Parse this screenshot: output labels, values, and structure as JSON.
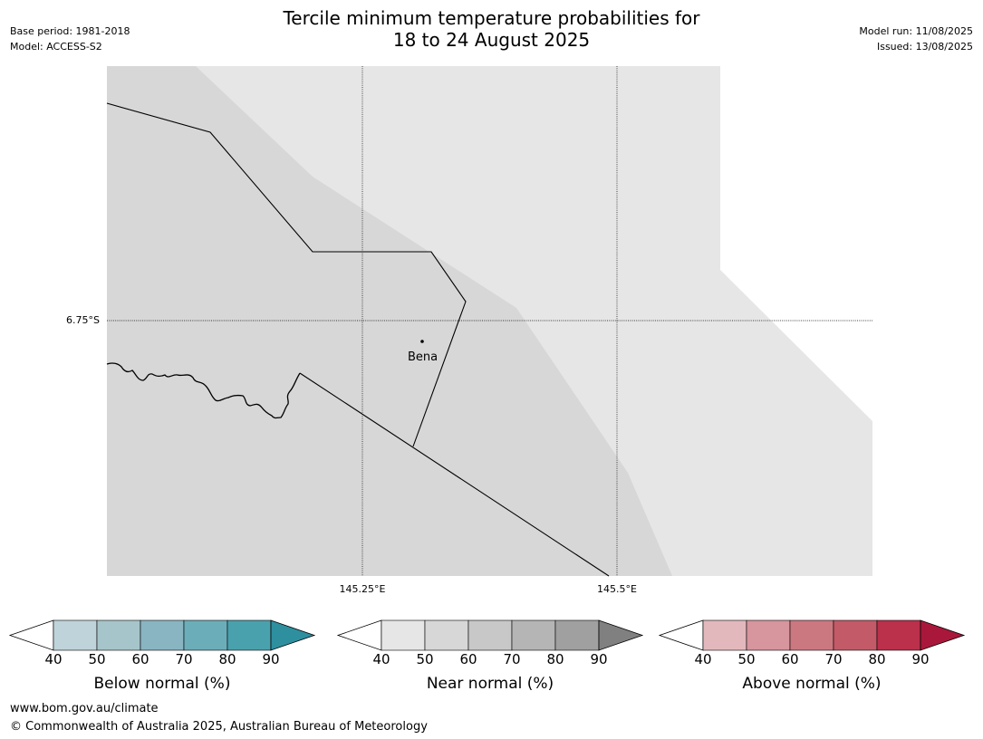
{
  "title": {
    "line1": "Tercile minimum temperature probabilities for",
    "line2": "18 to 24 August 2025"
  },
  "meta": {
    "base_period": "Base period: 1981-2018",
    "model": "Model: ACCESS-S2",
    "model_run": "Model run: 11/08/2025",
    "issued": "Issued: 13/08/2025"
  },
  "map": {
    "longitude_ticks": [
      "145.25°E",
      "145.5°E"
    ],
    "latitude_ticks": [
      "6.75°S"
    ],
    "places": [
      {
        "name": "Bena"
      }
    ],
    "colors": {
      "near_normal_50_60": "#d7d7d7",
      "near_normal_40_50": "#e6e6e6",
      "border": "#000000"
    }
  },
  "legends": [
    {
      "label": "Below normal (%)",
      "ticks": [
        "40",
        "50",
        "60",
        "70",
        "80",
        "90"
      ],
      "colors": [
        "#bfd3da",
        "#a6c5cb",
        "#88b5c1",
        "#6baeb9",
        "#4aa1ae",
        "#2e8f9f"
      ]
    },
    {
      "label": "Near normal (%)",
      "ticks": [
        "40",
        "50",
        "60",
        "70",
        "80",
        "90"
      ],
      "colors": [
        "#e6e6e6",
        "#d7d7d7",
        "#c8c8c8",
        "#b5b5b5",
        "#a0a0a0",
        "#808080"
      ]
    },
    {
      "label": "Above normal (%)",
      "ticks": [
        "40",
        "50",
        "60",
        "70",
        "80",
        "90"
      ],
      "colors": [
        "#e3b8bd",
        "#d7959d",
        "#cc7880",
        "#c35a68",
        "#bb304b",
        "#a9183a"
      ]
    }
  ],
  "footer": {
    "url": "www.bom.gov.au/climate",
    "copyright": "© Commonwealth of Australia 2025, Australian Bureau of Meteorology"
  }
}
